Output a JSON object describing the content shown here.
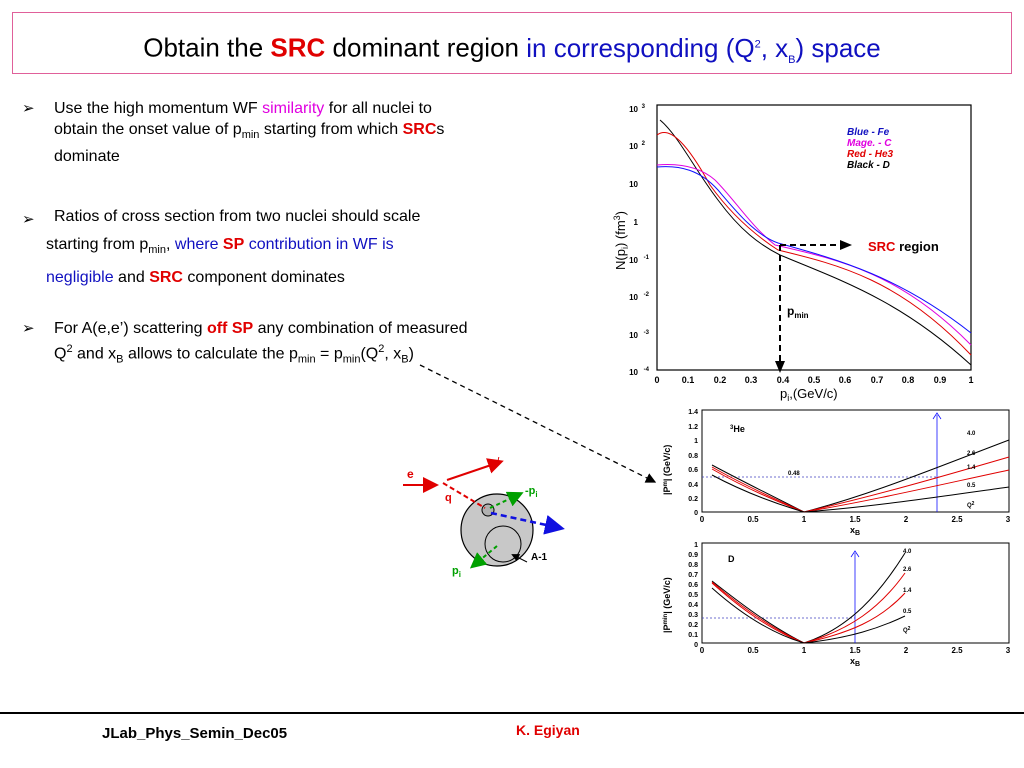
{
  "title": {
    "part1": "Obtain the ",
    "src": "SRC",
    "part2": " dominant region ",
    "part3": "in corresponding (Q",
    "sup2": "2",
    "part4": ", x",
    "subB": "B",
    "part5": ")  space"
  },
  "bullets": {
    "b1": {
      "t1": "Use the high momentum WF ",
      "sim": "similarity",
      "t2": " for all nuclei to",
      "t3": "obtain the onset value of p",
      "min": "min",
      "t4": " starting from which ",
      "src": "SRC",
      "t5": "s",
      "t6": "dominate"
    },
    "b2": {
      "t1": "Ratios of cross section from two nuclei should scale",
      "t2": "starting from p",
      "min": "min",
      "t3": ", ",
      "where": "where ",
      "sp": "SP",
      "contrib": " contribution in WF is",
      "neg": "negligible",
      "and": " and ",
      "src": "SRC",
      "t4": " component dominates"
    },
    "b3": {
      "t1": "For A(e,e’) scattering ",
      "off": "off ",
      "sp": "SP",
      "t2": " any combination of measured",
      "q": "Q",
      "sup2": "2",
      "t3": " and x",
      "subB": "B",
      "t4": " allows to calculate the p",
      "min": "min",
      "t5": " = p",
      "min2": "min",
      "t6": "(Q",
      "sup2b": "2",
      "t7": ", x",
      "subB2": "B",
      "t8": ")"
    }
  },
  "top_plot": {
    "y_ticks": [
      "10 3",
      "10 2",
      "10",
      "1",
      "10 -1",
      "10 -2",
      "10 -3",
      "10 -4"
    ],
    "x_ticks": [
      "0",
      "0.1",
      "0.2",
      "0.3",
      "0.4",
      "0.5",
      "0.6",
      "0.7",
      "0.8",
      "0.9",
      "1"
    ],
    "ylabel": "N(pi) (fm3)",
    "xlabel": "pi,(GeV/c)",
    "legend": [
      "Blue - Fe",
      "Mage. - C",
      "Red - He3",
      "Black - D"
    ],
    "src_region_1": "SRC",
    "src_region_2": " region",
    "pmin_label": "p",
    "pmin_sub": "min"
  },
  "he_plot": {
    "y_ticks": [
      "1.4",
      "1.2",
      "1",
      "0.8",
      "0.6",
      "0.4",
      "0.2",
      "0"
    ],
    "x_ticks": [
      "0",
      "0.5",
      "1",
      "1.5",
      "2",
      "2.5",
      "3"
    ],
    "nucleus": "3He",
    "curve_labels": [
      "4.0",
      "2.6",
      "1.4",
      "0.5"
    ],
    "q2": "Q2",
    "marker": "0.48",
    "ylabel": "|Pmin| (GeV/c)",
    "xlabel": "xB"
  },
  "d_plot": {
    "y_ticks": [
      "1",
      "0.9",
      "0.8",
      "0.7",
      "0.6",
      "0.5",
      "0.4",
      "0.3",
      "0.2",
      "0.1",
      "0"
    ],
    "x_ticks": [
      "0",
      "0.5",
      "1",
      "1.5",
      "2",
      "2.5",
      "3"
    ],
    "nucleus": "D",
    "curve_labels": [
      "4.0",
      "2.6",
      "1.4",
      "0.5"
    ],
    "q2": "Q2",
    "ylabel": "|Pmin| (GeV/c)",
    "xlabel": "xB"
  },
  "diagram": {
    "e": "e",
    "e_prime": "e/",
    "q": "q",
    "minus_pi": "-pi",
    "pi": "pi",
    "a_minus_1": "A-1"
  },
  "footer": {
    "left": "JLab_Phys_Semin_Dec05",
    "right": "K. Egiyan"
  },
  "colors": {
    "accent_red": "#e00000",
    "accent_blue": "#1010c0",
    "magenta": "#e000e0",
    "title_border": "#e0609a"
  }
}
